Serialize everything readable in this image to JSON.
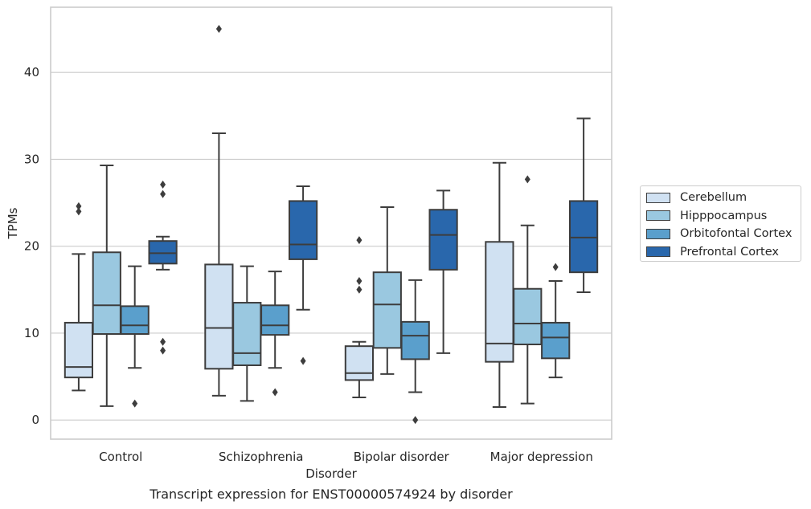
{
  "caption": "Transcript expression for ENST00000574924 by disorder",
  "chart_data": {
    "type": "box",
    "xlabel": "Disorder",
    "ylabel": "TPMs",
    "ylim": [
      -2.2,
      47.5
    ],
    "yticks": [
      0,
      10,
      20,
      30,
      40
    ],
    "categories": [
      "Control",
      "Schizophrenia",
      "Bipolar disorder",
      "Major depression"
    ],
    "grid": "horizontal",
    "legend_placement": "right",
    "series": [
      {
        "name": "Cerebellum",
        "color": "#d0e1f2",
        "boxes": [
          {
            "whislo": 3.4,
            "q1": 4.9,
            "med": 6.1,
            "q3": 11.2,
            "whishi": 19.1,
            "fliers": [
              24.0,
              24.6
            ]
          },
          {
            "whislo": 2.8,
            "q1": 5.9,
            "med": 10.6,
            "q3": 17.9,
            "whishi": 33.0,
            "fliers": [
              45.0
            ]
          },
          {
            "whislo": 2.6,
            "q1": 4.6,
            "med": 5.4,
            "q3": 8.5,
            "whishi": 9.0,
            "fliers": [
              15.0,
              16.0,
              20.7
            ]
          },
          {
            "whislo": 1.5,
            "q1": 6.7,
            "med": 8.8,
            "q3": 20.5,
            "whishi": 29.6,
            "fliers": []
          }
        ]
      },
      {
        "name": "Hipppocampus",
        "color": "#9ac8e0",
        "boxes": [
          {
            "whislo": 1.6,
            "q1": 9.9,
            "med": 13.2,
            "q3": 19.3,
            "whishi": 29.3,
            "fliers": []
          },
          {
            "whislo": 2.2,
            "q1": 6.3,
            "med": 7.7,
            "q3": 13.5,
            "whishi": 17.7,
            "fliers": []
          },
          {
            "whislo": 5.3,
            "q1": 8.3,
            "med": 13.3,
            "q3": 17.0,
            "whishi": 24.5,
            "fliers": []
          },
          {
            "whislo": 1.9,
            "q1": 8.7,
            "med": 11.1,
            "q3": 15.1,
            "whishi": 22.4,
            "fliers": [
              27.7
            ]
          }
        ]
      },
      {
        "name": "Orbitofontal Cortex",
        "color": "#5a9fcc",
        "boxes": [
          {
            "whislo": 6.0,
            "q1": 9.9,
            "med": 10.9,
            "q3": 13.1,
            "whishi": 17.7,
            "fliers": [
              1.9
            ]
          },
          {
            "whislo": 6.0,
            "q1": 9.8,
            "med": 10.9,
            "q3": 13.2,
            "whishi": 17.1,
            "fliers": [
              3.2
            ]
          },
          {
            "whislo": 3.2,
            "q1": 7.0,
            "med": 9.7,
            "q3": 11.3,
            "whishi": 16.1,
            "fliers": [
              0.0
            ]
          },
          {
            "whislo": 4.9,
            "q1": 7.1,
            "med": 9.5,
            "q3": 11.2,
            "whishi": 16.0,
            "fliers": [
              17.6
            ]
          }
        ]
      },
      {
        "name": "Prefrontal Cortex",
        "color": "#2967ac",
        "boxes": [
          {
            "whislo": 17.3,
            "q1": 18.0,
            "med": 19.2,
            "q3": 20.6,
            "whishi": 21.1,
            "fliers": [
              8.0,
              9.0,
              26.0,
              27.1
            ]
          },
          {
            "whislo": 12.7,
            "q1": 18.5,
            "med": 20.2,
            "q3": 25.2,
            "whishi": 26.9,
            "fliers": [
              6.8
            ]
          },
          {
            "whislo": 7.7,
            "q1": 17.3,
            "med": 21.3,
            "q3": 24.2,
            "whishi": 26.4,
            "fliers": []
          },
          {
            "whislo": 14.7,
            "q1": 17.0,
            "med": 21.0,
            "q3": 25.2,
            "whishi": 34.7,
            "fliers": []
          }
        ]
      }
    ]
  }
}
